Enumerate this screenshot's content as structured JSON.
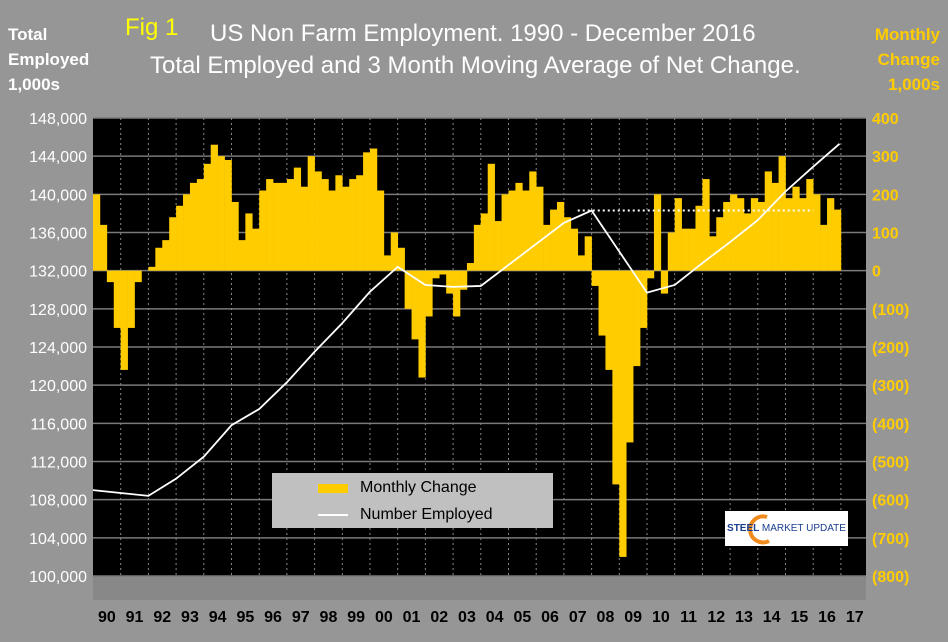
{
  "header": {
    "fig_label": "Fig 1",
    "title": "US Non Farm Employment. 1990 - December 2016",
    "subtitle": "Total Employed and 3 Month Moving Average of Net Change.",
    "left_axis_title": [
      "Total",
      "Employed",
      "1,000s"
    ],
    "right_axis_title": [
      "Monthly",
      "Change",
      "1,000s"
    ]
  },
  "logo": {
    "text": "STEEL MARKET UPDATE"
  },
  "colors": {
    "background": "#969696",
    "plot": "#000000",
    "bars": "#FFCC00",
    "line": "#FFFFFF",
    "right_axis": "#FFCC00"
  },
  "chart_data": {
    "type": "bar+line",
    "title": "US Non Farm Employment. 1990 - December 2016",
    "legend": {
      "placement": "bottom-center",
      "entries": [
        "Monthly Change",
        "Number Employed"
      ]
    },
    "x_tick_labels": [
      "90",
      "91",
      "92",
      "93",
      "94",
      "95",
      "96",
      "97",
      "98",
      "99",
      "00",
      "01",
      "02",
      "03",
      "04",
      "05",
      "06",
      "07",
      "08",
      "09",
      "10",
      "11",
      "12",
      "13",
      "14",
      "15",
      "16",
      "17"
    ],
    "left_axis": {
      "range": [
        100000,
        148000
      ],
      "ticks": [
        "100,000",
        "104,000",
        "108,000",
        "112,000",
        "116,000",
        "120,000",
        "124,000",
        "128,000",
        "132,000",
        "136,000",
        "140,000",
        "144,000",
        "148,000"
      ]
    },
    "right_axis": {
      "range": [
        -800,
        400
      ],
      "ticks": [
        "(800)",
        "(700)",
        "(600)",
        "(500)",
        "(400)",
        "(300)",
        "(200)",
        "(100)",
        "0",
        "100",
        "200",
        "300",
        "400"
      ]
    },
    "grid": true,
    "monthly_change": {
      "name": "Monthly Change",
      "axis": "right",
      "frequency": "quarterly, 1990 Q1 - 2016 Q4",
      "values": [
        200,
        120,
        -30,
        -150,
        -260,
        -150,
        -30,
        0,
        10,
        60,
        80,
        140,
        170,
        200,
        230,
        240,
        280,
        330,
        300,
        290,
        180,
        80,
        150,
        110,
        210,
        240,
        230,
        230,
        240,
        270,
        220,
        300,
        260,
        240,
        210,
        250,
        220,
        240,
        250,
        310,
        320,
        210,
        40,
        100,
        60,
        -100,
        -180,
        -280,
        -120,
        -20,
        -10,
        -60,
        -120,
        -50,
        20,
        120,
        150,
        280,
        130,
        200,
        210,
        230,
        210,
        260,
        220,
        120,
        160,
        180,
        140,
        110,
        40,
        90,
        -40,
        -170,
        -260,
        -560,
        -750,
        -450,
        -250,
        -150,
        -20,
        200,
        -60,
        100,
        190,
        110,
        110,
        170,
        240,
        90,
        140,
        180,
        200,
        190,
        150,
        190,
        180,
        260,
        230,
        300,
        190,
        220,
        190,
        240,
        200,
        120,
        190,
        160
      ]
    },
    "number_employed": {
      "name": "Number Employed",
      "axis": "left",
      "x": [
        1990,
        1991,
        1992,
        1993,
        1994,
        1995,
        1996,
        1997,
        1998,
        1999,
        2000,
        2001,
        2002,
        2003,
        2004,
        2005,
        2006,
        2007,
        2008,
        2009,
        2010,
        2011,
        2012,
        2013,
        2014,
        2015,
        2016,
        2017
      ],
      "values": [
        109000,
        108700,
        108400,
        110200,
        112500,
        115800,
        117500,
        120300,
        123500,
        126500,
        129800,
        132400,
        130500,
        130300,
        130400,
        132600,
        134800,
        137000,
        138300,
        134000,
        129700,
        130500,
        132800,
        135000,
        137300,
        140300,
        142900,
        145300
      ]
    },
    "reference_line": {
      "value": 138300,
      "from": 2007.5,
      "to": 2016.0,
      "style": "dotted"
    }
  }
}
